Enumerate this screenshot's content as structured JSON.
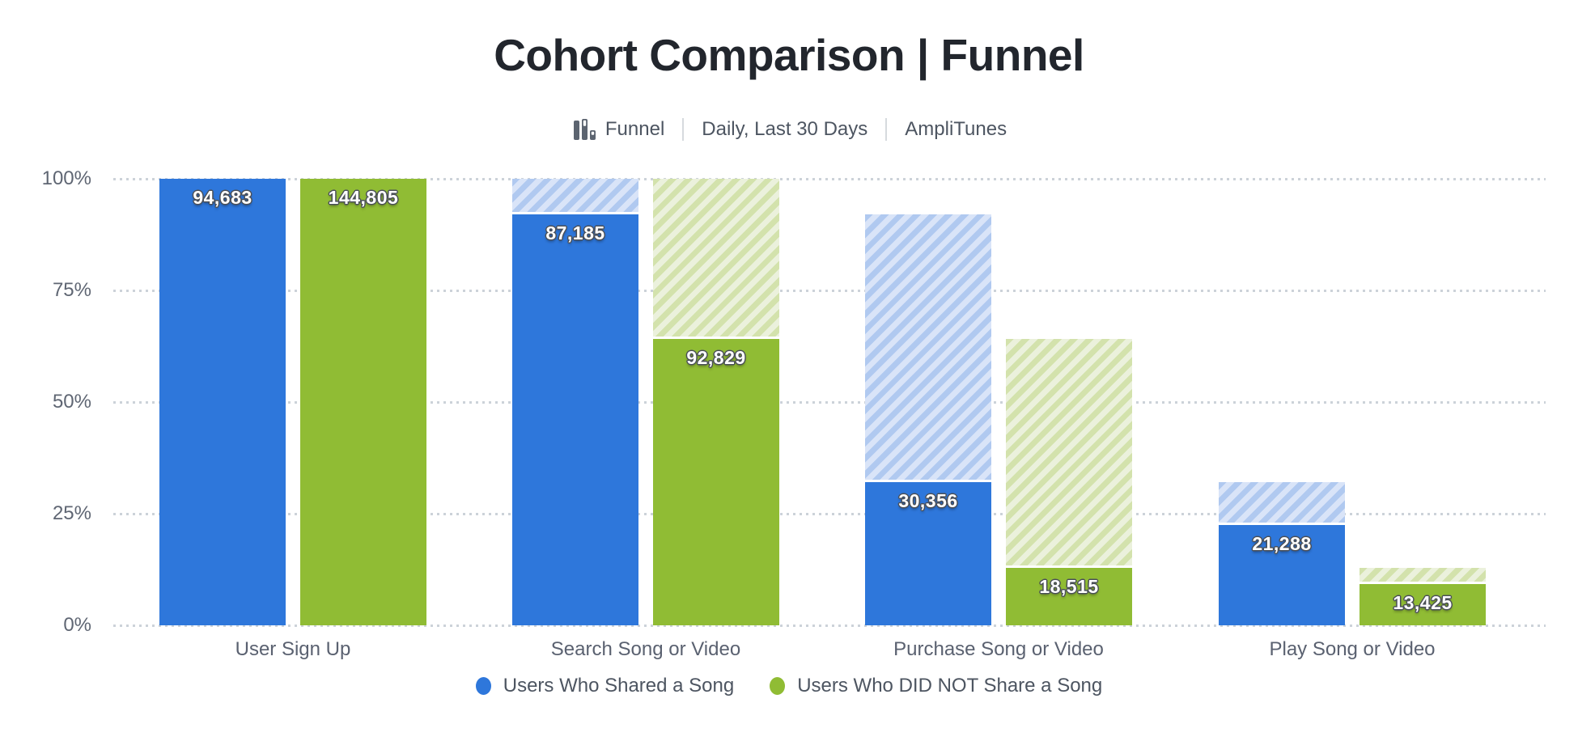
{
  "header": {
    "title": "Cohort Comparison | Funnel",
    "chart_type_label": "Funnel",
    "date_range_label": "Daily, Last 30 Days",
    "project_label": "AmpliTunes",
    "icon": "funnel-chart-icon"
  },
  "chart_data": {
    "type": "bar",
    "subtype": "funnel-conversion-grouped",
    "title": "Cohort Comparison | Funnel",
    "categories": [
      "User Sign Up",
      "Search Song or Video",
      "Purchase Song or Video",
      "Play Song or Video"
    ],
    "series": [
      {
        "name": "Users Who Shared a Song",
        "color": "#2e77db",
        "hatch_bg": "#d9e4f8",
        "hatch_stripe": "#b0c9f0",
        "values": [
          94683,
          87185,
          30356,
          21288
        ],
        "display_labels": [
          "94,683",
          "87,185",
          "30,356",
          "21,288"
        ],
        "pct_of_first_step": [
          100,
          92.08,
          32.06,
          22.48
        ]
      },
      {
        "name": "Users Who DID NOT Share a Song",
        "color": "#90bc34",
        "hatch_bg": "#ebf1dc",
        "hatch_stripe": "#d3e2ac",
        "values": [
          144805,
          92829,
          18515,
          13425
        ],
        "display_labels": [
          "144,805",
          "92,829",
          "18,515",
          "13,425"
        ],
        "pct_of_first_step": [
          100,
          64.11,
          12.79,
          9.27
        ]
      }
    ],
    "y_axis": {
      "ticks": [
        "0%",
        "25%",
        "50%",
        "75%",
        "100%"
      ],
      "min": 0,
      "max": 100,
      "unit": "% of first step"
    },
    "grid": "dotted-horizontal",
    "hatch_meaning": "drop-off from previous funnel step",
    "legend": {
      "position": "bottom-center",
      "entries": [
        {
          "label": "Users Who Shared a Song",
          "color": "#2e77db"
        },
        {
          "label": "Users Who DID NOT Share a Song",
          "color": "#90bc34"
        }
      ]
    }
  },
  "colors": {
    "title_text": "#22262d",
    "subtitle_text": "#4d5561",
    "axis_text": "#5f6673",
    "gridline": "#ccd2d9",
    "value_label_text": "#ffffff",
    "value_label_outline": "#4a4f57",
    "background": "#ffffff"
  }
}
